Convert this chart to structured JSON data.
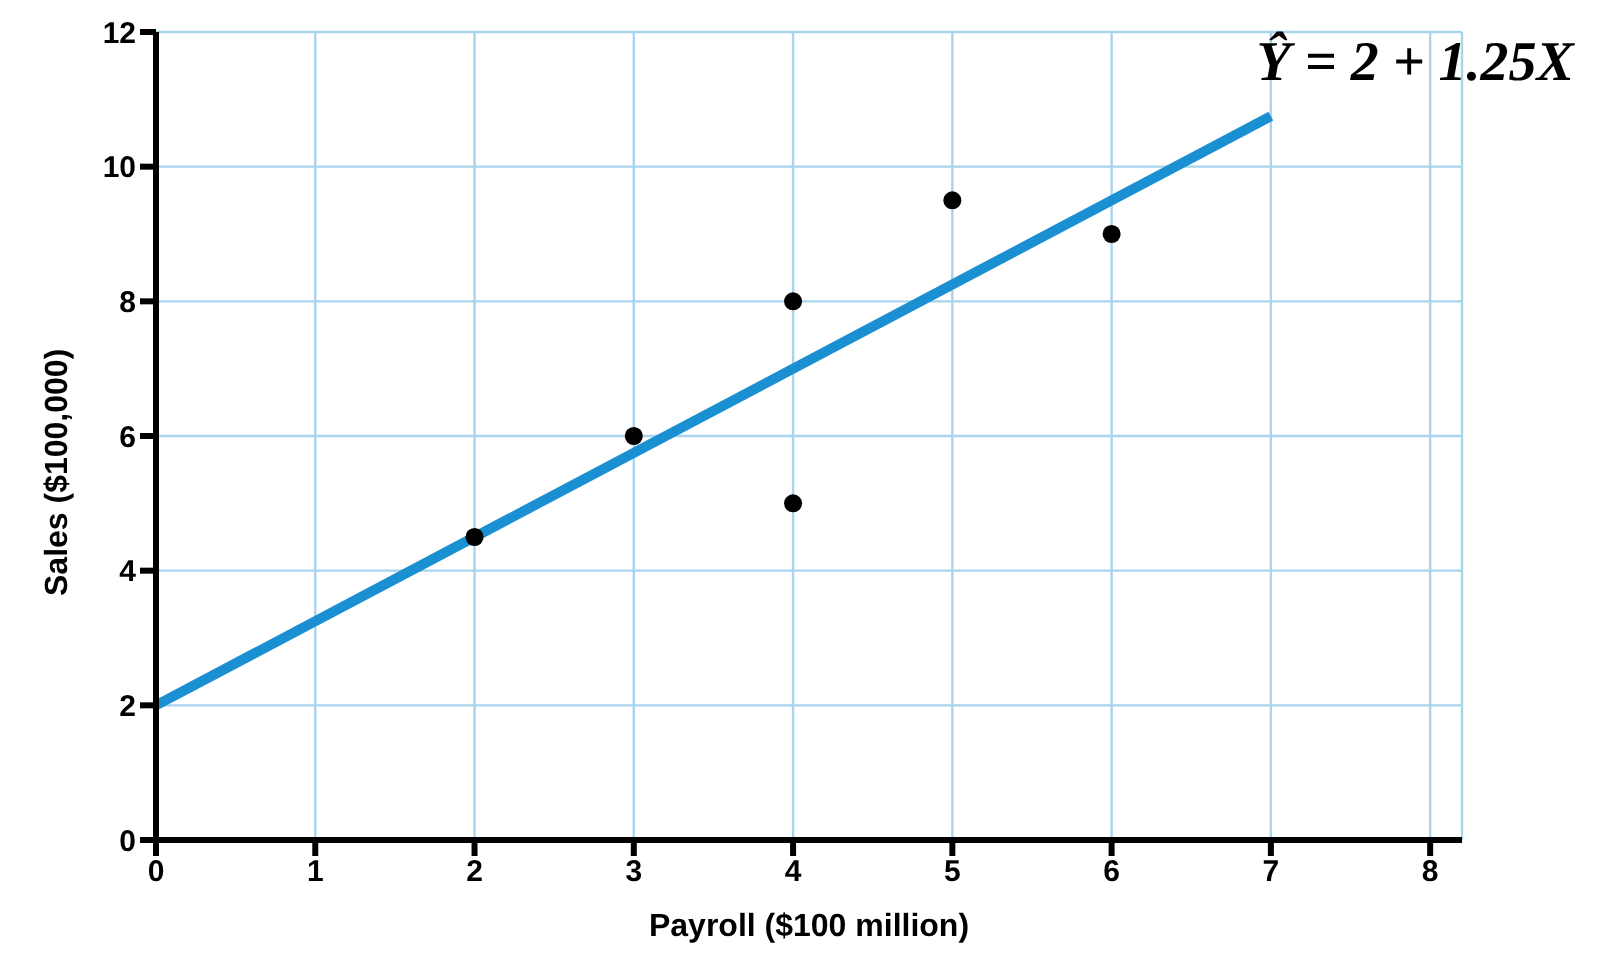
{
  "chart_data": {
    "type": "scatter",
    "xlabel": "Payroll ($100 million)",
    "ylabel": "Sales ($100,000)",
    "annotations": [
      "Ŷ = 2 + 1.25X"
    ],
    "xlim": [
      0,
      8.2
    ],
    "xticks": [
      0,
      1,
      2,
      3,
      4,
      5,
      6,
      7,
      8
    ],
    "ylim": [
      0,
      12
    ],
    "yticks": [
      0,
      2,
      4,
      6,
      8,
      10,
      12
    ],
    "grid": true,
    "marker": "circle",
    "series": [
      {
        "color": "#000000",
        "x": [
          2,
          3,
          4,
          4,
          5,
          6
        ],
        "values": [
          4.5,
          6,
          8,
          5,
          9.5,
          9
        ]
      },
      {
        "type": "line",
        "color": "#1a8fd1",
        "x": [
          0,
          7
        ],
        "values": [
          2,
          10.75
        ],
        "line_style": "solid",
        "marker": "none"
      }
    ]
  }
}
